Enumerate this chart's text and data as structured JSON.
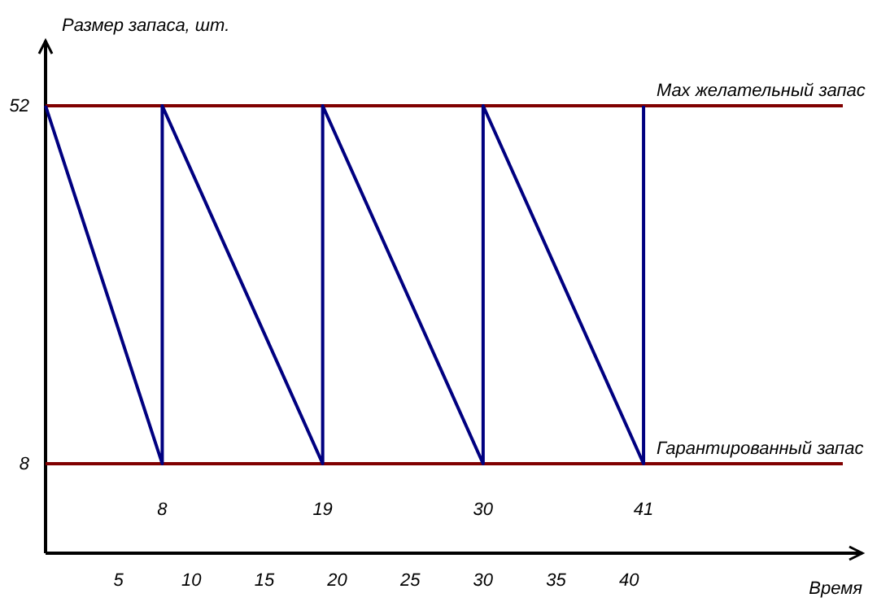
{
  "chart_data": {
    "type": "line",
    "ylabel": "Размер запаса, шт.",
    "xlabel": "Время",
    "x": [
      0,
      8,
      8,
      19,
      19,
      30,
      30,
      41,
      41
    ],
    "series": [
      {
        "color": "#000080",
        "values": [
          52,
          8,
          52,
          8,
          52,
          8,
          52,
          8,
          52
        ]
      }
    ],
    "xlim": [
      0,
      56
    ],
    "ylim": [
      -3,
      60
    ],
    "xticks": [
      5,
      10,
      15,
      20,
      25,
      30,
      35,
      40
    ],
    "yticks": [
      8,
      52
    ],
    "ref_lines": [
      {
        "axis": "y",
        "value": 52,
        "label": "Max желательный запас",
        "color": "#800000"
      },
      {
        "axis": "y",
        "value": 8,
        "label": "Гарантированный запас",
        "color": "#800000"
      }
    ],
    "annotations": [
      "8",
      "19",
      "30",
      "41"
    ],
    "marker": "none",
    "line_style": "solid",
    "grid": false
  }
}
